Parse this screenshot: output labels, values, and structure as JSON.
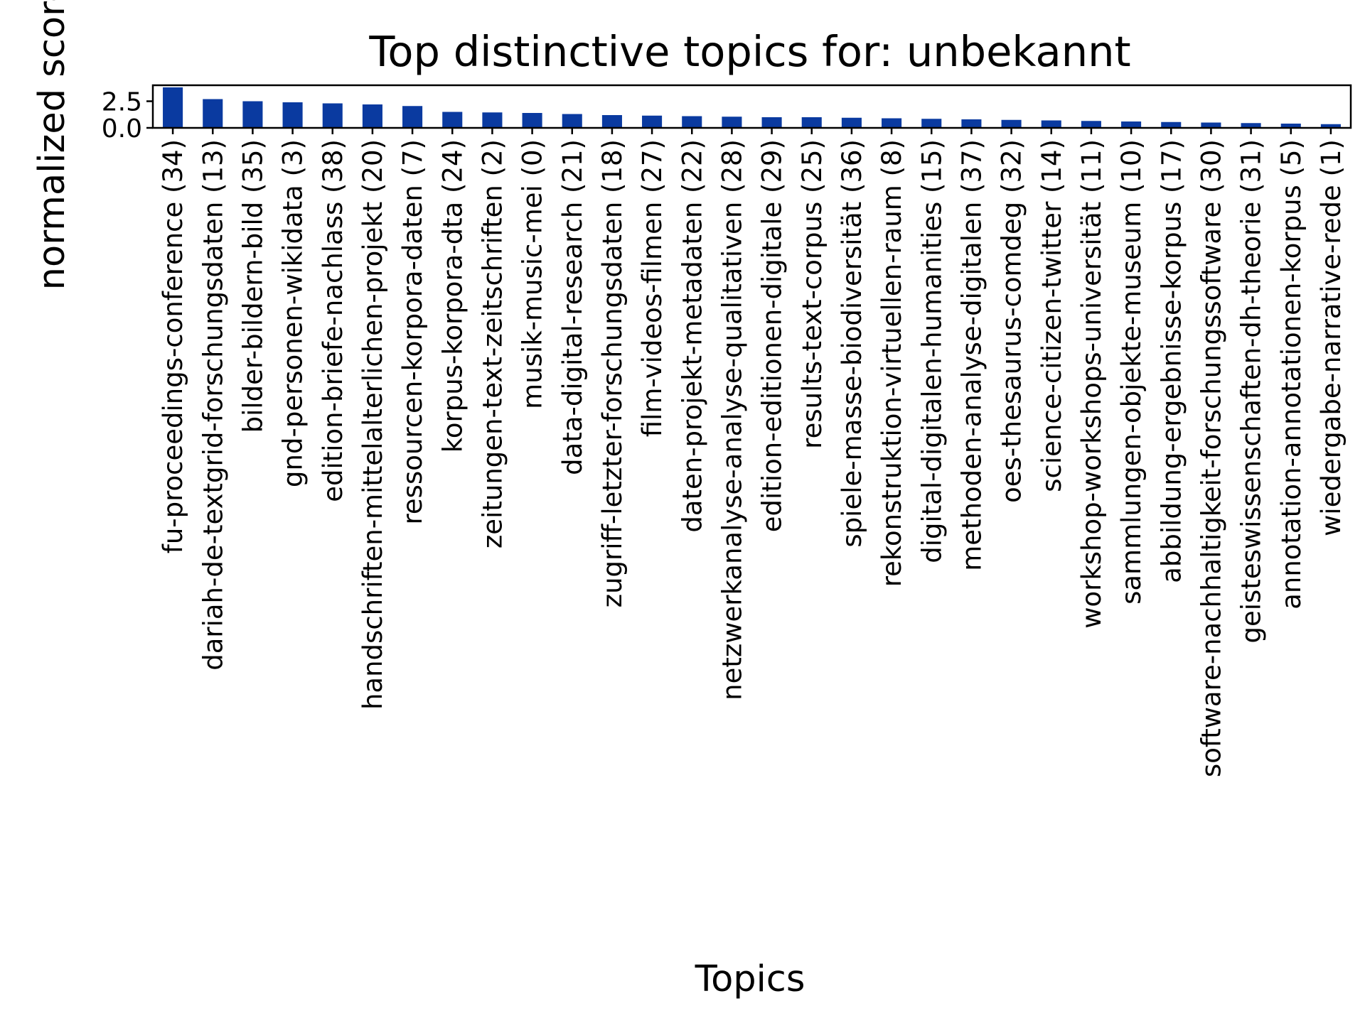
{
  "chart_data": {
    "type": "bar",
    "title": "Top distinctive topics for: unbekannt",
    "xlabel": "Topics",
    "ylabel": "normalized score",
    "ylim": [
      0,
      4.0
    ],
    "yticks": [
      0.0,
      2.5
    ],
    "ytick_labels": [
      "0.0",
      "2.5"
    ],
    "grid": false,
    "legend": "none",
    "bar_color": "#0a3aa0",
    "categories": [
      "fu-proceedings-conference (34)",
      "dariah-de-textgrid-forschungsdaten (13)",
      "bilder-bildern-bild (35)",
      "gnd-personen-wikidata (3)",
      "edition-briefe-nachlass (38)",
      "handschriften-mittelalterlichen-projekt (20)",
      "ressourcen-korpora-daten (7)",
      "korpus-korpora-dta (24)",
      "zeitungen-text-zeitschriften (2)",
      "musik-music-mei (0)",
      "data-digital-research (21)",
      "zugriff-letzter-forschungsdaten (18)",
      "film-videos-filmen (27)",
      "daten-projekt-metadaten (22)",
      "netzwerkanalyse-analyse-qualitativen (28)",
      "edition-editionen-digitale (29)",
      "results-text-corpus (25)",
      "spiele-masse-biodiversität (36)",
      "rekonstruktion-virtuellen-raum (8)",
      "digital-digitalen-humanities (15)",
      "methoden-analyse-digitalen (37)",
      "oes-thesaurus-comdeg (32)",
      "science-citizen-twitter (14)",
      "workshop-workshops-universität (11)",
      "sammlungen-objekte-museum (10)",
      "abbildung-ergebnisse-korpus (17)",
      "software-nachhaltigkeit-forschungssoftware (30)",
      "geisteswissenschaften-dh-theorie (31)",
      "annotation-annotationen-korpus (5)",
      "wiedergabe-narrative-rede (1)"
    ],
    "values": [
      3.8,
      2.7,
      2.5,
      2.4,
      2.3,
      2.2,
      2.05,
      1.5,
      1.45,
      1.4,
      1.3,
      1.2,
      1.15,
      1.1,
      1.05,
      1.0,
      1.0,
      0.95,
      0.9,
      0.85,
      0.8,
      0.75,
      0.7,
      0.65,
      0.6,
      0.55,
      0.5,
      0.45,
      0.4,
      0.35
    ]
  }
}
